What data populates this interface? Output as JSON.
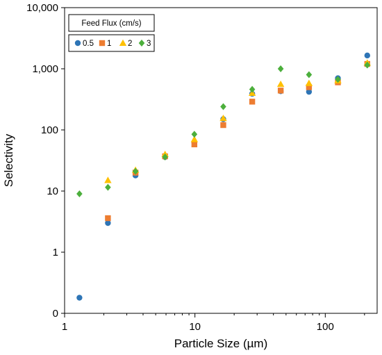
{
  "chart_data": {
    "type": "scatter",
    "xlabel": "Particle Size (µm)",
    "ylabel": "Selectivity",
    "x_scale": "log",
    "y_scale": "log",
    "xlim": [
      1,
      250
    ],
    "ylim": [
      0.1,
      10000
    ],
    "x_ticks": [
      1,
      10,
      100
    ],
    "x_tick_labels": [
      "1",
      "10",
      "100"
    ],
    "y_ticks": [
      0.1,
      1,
      10,
      100,
      1000,
      10000
    ],
    "y_tick_labels": [
      "0",
      "1",
      "10",
      "100",
      "1,000",
      "10,000"
    ],
    "grid": false,
    "legend": {
      "title": "Feed Flux (cm/s)",
      "position": "top-left"
    },
    "series": [
      {
        "name": "0.5",
        "color": "#2e75b6",
        "marker": "circle",
        "points": [
          {
            "x": 1.3,
            "y": 0.18
          },
          {
            "x": 2.15,
            "y": 3.0
          },
          {
            "x": 3.5,
            "y": 18
          },
          {
            "x": 5.9,
            "y": 36
          },
          {
            "x": 9.9,
            "y": 62
          },
          {
            "x": 16.5,
            "y": 150
          },
          {
            "x": 27.5,
            "y": 390
          },
          {
            "x": 45.5,
            "y": 430
          },
          {
            "x": 75,
            "y": 420
          },
          {
            "x": 125,
            "y": 700
          },
          {
            "x": 210,
            "y": 1650
          }
        ]
      },
      {
        "name": "1",
        "color": "#ed7d31",
        "marker": "square",
        "points": [
          {
            "x": 2.15,
            "y": 3.6
          },
          {
            "x": 3.5,
            "y": 20
          },
          {
            "x": 5.9,
            "y": 37
          },
          {
            "x": 9.9,
            "y": 58
          },
          {
            "x": 16.5,
            "y": 120
          },
          {
            "x": 27.5,
            "y": 290
          },
          {
            "x": 45.5,
            "y": 440
          },
          {
            "x": 75,
            "y": 500
          },
          {
            "x": 125,
            "y": 600
          },
          {
            "x": 210,
            "y": 1200
          }
        ]
      },
      {
        "name": "2",
        "color": "#ffc000",
        "marker": "triangle",
        "points": [
          {
            "x": 2.15,
            "y": 15
          },
          {
            "x": 3.5,
            "y": 22
          },
          {
            "x": 5.9,
            "y": 40
          },
          {
            "x": 9.9,
            "y": 70
          },
          {
            "x": 16.5,
            "y": 155
          },
          {
            "x": 27.5,
            "y": 400
          },
          {
            "x": 45.5,
            "y": 560
          },
          {
            "x": 75,
            "y": 580
          },
          {
            "x": 125,
            "y": 640
          },
          {
            "x": 210,
            "y": 1250
          }
        ]
      },
      {
        "name": "3",
        "color": "#4caf3c",
        "marker": "diamond",
        "points": [
          {
            "x": 1.3,
            "y": 9
          },
          {
            "x": 2.15,
            "y": 11.5
          },
          {
            "x": 3.5,
            "y": 21
          },
          {
            "x": 5.9,
            "y": 36
          },
          {
            "x": 9.9,
            "y": 85
          },
          {
            "x": 16.5,
            "y": 240
          },
          {
            "x": 27.5,
            "y": 460
          },
          {
            "x": 45.5,
            "y": 1000
          },
          {
            "x": 75,
            "y": 800
          },
          {
            "x": 125,
            "y": 670
          },
          {
            "x": 210,
            "y": 1150
          }
        ]
      }
    ]
  }
}
